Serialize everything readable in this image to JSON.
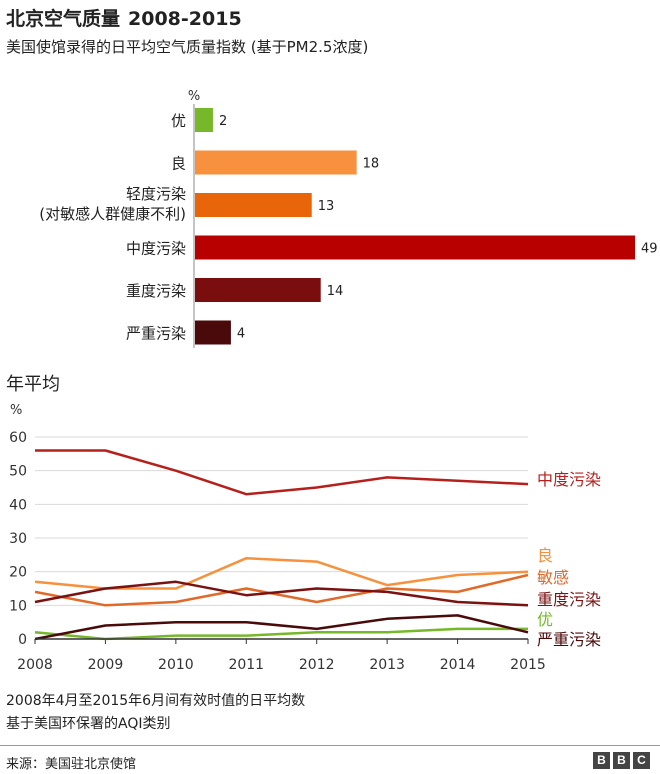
{
  "header": {
    "title": "北京空气质量",
    "title_years": "2008-2015",
    "subtitle": "美国使馆录得的日平均空气质量指数 (基于PM2.5浓度)"
  },
  "chart_data": [
    {
      "type": "bar",
      "orientation": "horizontal",
      "unit_label": "%",
      "categories": [
        "优",
        "良",
        "轻度污染\n(对敏感人群健康不利)",
        "中度污染",
        "重度污染",
        "严重污染"
      ],
      "values": [
        2,
        18,
        13,
        49,
        14,
        4
      ],
      "colors": [
        "#76b82a",
        "#f7913d",
        "#e8650a",
        "#b80000",
        "#7a0d0d",
        "#4a0a0a"
      ],
      "xlim": [
        0,
        49
      ]
    },
    {
      "type": "line",
      "title": "年平均",
      "ylabel": "%",
      "ylim": [
        0,
        60
      ],
      "yticks": [
        0,
        10,
        20,
        30,
        40,
        50,
        60
      ],
      "x": [
        2008,
        2009,
        2010,
        2011,
        2012,
        2013,
        2014,
        2015
      ],
      "grid": true,
      "legend": "direct labels at right end of lines",
      "series": [
        {
          "name": "中度污染",
          "color": "#b5201d",
          "values": [
            56,
            56,
            50,
            43,
            45,
            48,
            47,
            46
          ]
        },
        {
          "name": "良",
          "color": "#f7913d",
          "values": [
            17,
            15,
            15,
            24,
            23,
            16,
            19,
            20
          ]
        },
        {
          "name": "敏感",
          "color": "#e06a2a",
          "values": [
            14,
            10,
            11,
            15,
            11,
            15,
            14,
            19
          ]
        },
        {
          "name": "重度污染",
          "color": "#7a1212",
          "values": [
            11,
            15,
            17,
            13,
            15,
            14,
            11,
            10
          ]
        },
        {
          "name": "优",
          "color": "#76b82a",
          "values": [
            2,
            0,
            1,
            1,
            2,
            2,
            3,
            3
          ]
        },
        {
          "name": "严重污染",
          "color": "#4a0a0a",
          "values": [
            0,
            4,
            5,
            5,
            3,
            6,
            7,
            2
          ]
        }
      ]
    }
  ],
  "notes": {
    "line1": "2008年4月至2015年6月间有效时值的日平均数",
    "line2": "基于美国环保署的AQI类别"
  },
  "footer": {
    "source": "来源：美国驻北京使馆",
    "logo": [
      "B",
      "B",
      "C"
    ]
  }
}
